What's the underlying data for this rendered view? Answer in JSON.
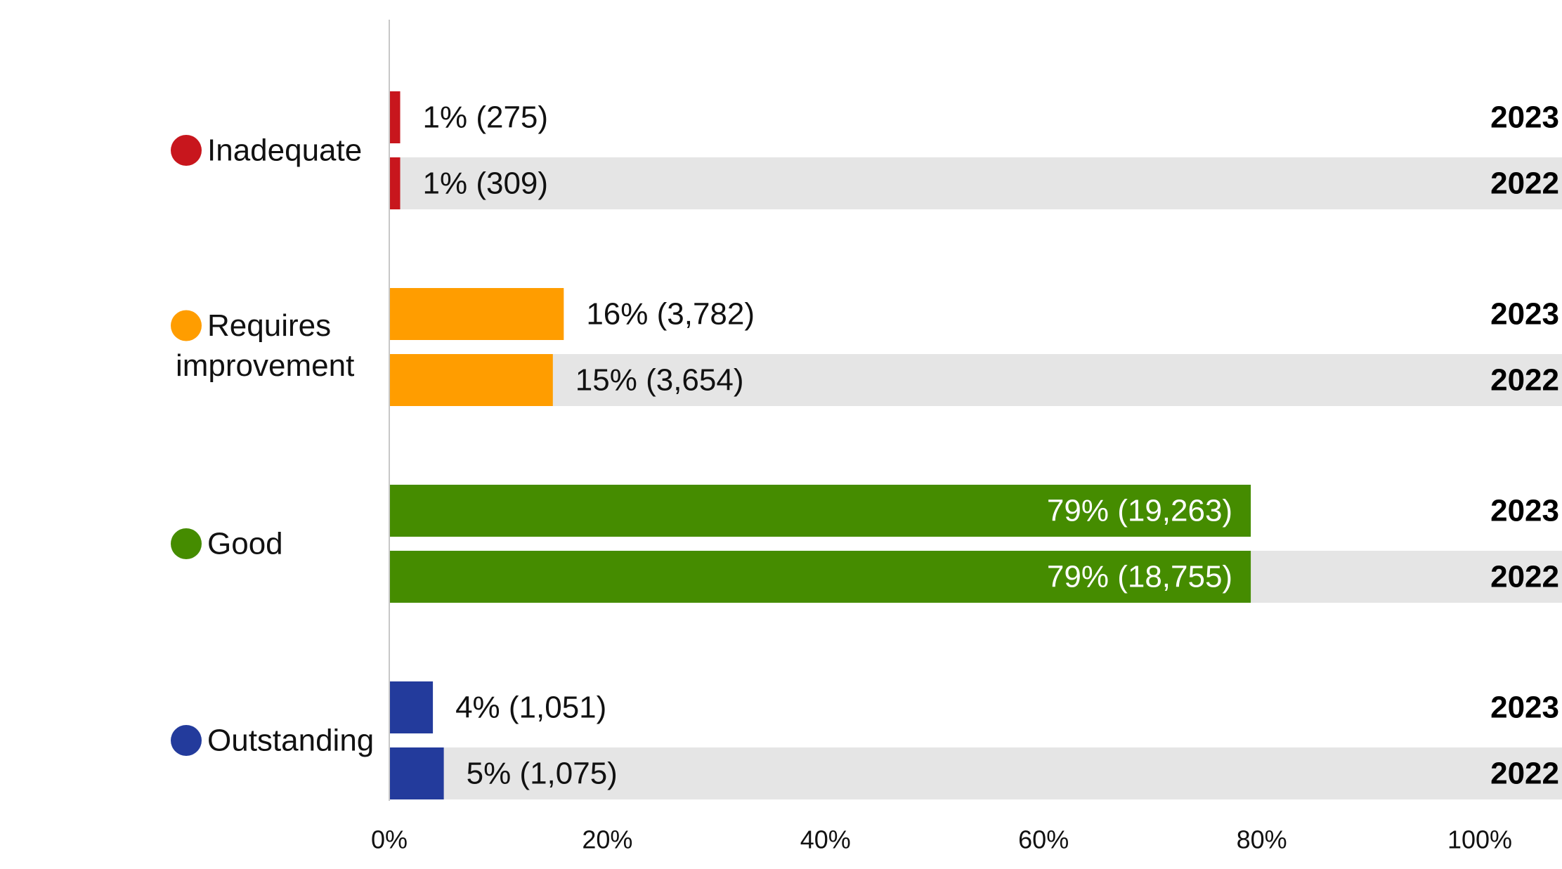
{
  "chart_data": {
    "type": "bar",
    "orientation": "horizontal",
    "categories": [
      "Inadequate",
      "Requires improvement",
      "Good",
      "Outstanding"
    ],
    "category_lines": [
      [
        "Inadequate"
      ],
      [
        "Requires",
        "improvement"
      ],
      [
        "Good"
      ],
      [
        "Outstanding"
      ]
    ],
    "category_colors": [
      "#c8161d",
      "#ff9d00",
      "#458c00",
      "#233b9c"
    ],
    "series": [
      {
        "name": "2023",
        "values": [
          1,
          16,
          79,
          4
        ],
        "labels": [
          "1% (275)",
          "16% (3,782)",
          "79% (19,263)",
          "4% (1,051)"
        ]
      },
      {
        "name": "2022",
        "values": [
          1,
          15,
          79,
          5
        ],
        "labels": [
          "1% (309)",
          "15% (3,654)",
          "79% (18,755)",
          "5% (1,075)"
        ]
      }
    ],
    "xlim": [
      0,
      100
    ],
    "xticks": [
      "0%",
      "20%",
      "40%",
      "60%",
      "80%",
      "100%"
    ],
    "xtick_values": [
      0,
      20,
      40,
      60,
      80,
      100
    ],
    "row_band_color": "#e5e5e5",
    "grid": false
  }
}
